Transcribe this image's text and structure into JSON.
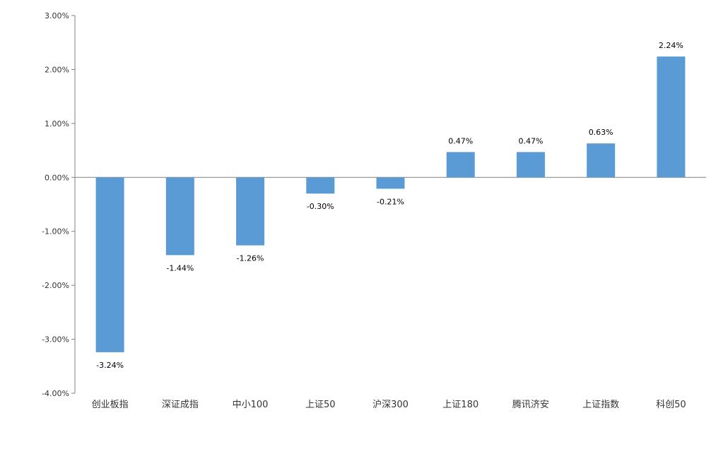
{
  "chart_data": {
    "type": "bar",
    "categories": [
      "创业板指",
      "深证成指",
      "中小100",
      "上证50",
      "沪深300",
      "上证180",
      "腾讯济安",
      "上证指数",
      "科创50"
    ],
    "values": [
      -3.24,
      -1.44,
      -1.26,
      -0.3,
      -0.21,
      0.47,
      0.47,
      0.63,
      2.24
    ],
    "data_labels": [
      "-3.24%",
      "-1.44%",
      "-1.26%",
      "-0.30%",
      "-0.21%",
      "0.47%",
      "0.47%",
      "0.63%",
      "2.24%"
    ],
    "y_ticks": [
      3,
      2,
      1,
      0,
      -1,
      -2,
      -3,
      -4
    ],
    "y_tick_labels": [
      "3.00%",
      "2.00%",
      "1.00%",
      "0.00%",
      "-1.00%",
      "-2.00%",
      "-3.00%",
      "-4.00%"
    ],
    "ylim": [
      -4,
      3
    ],
    "title": "",
    "xlabel": "",
    "ylabel": "",
    "grid": false,
    "legend": "none",
    "bar_color": "#5B9BD5",
    "axis_color": "#808080"
  }
}
